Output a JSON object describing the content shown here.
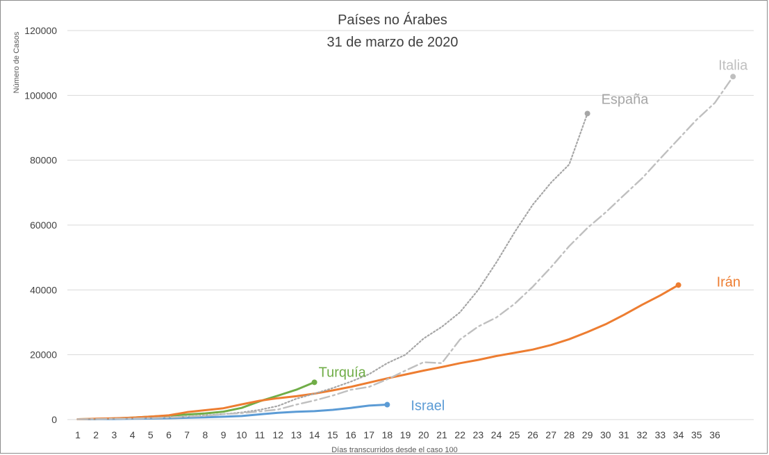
{
  "chart_data": {
    "type": "line",
    "title": "Países no Árabes",
    "subtitle": "31 de marzo de 2020",
    "xlabel": "Días transcurridos desde el caso 100",
    "ylabel": "Número de Casos",
    "ylim": [
      0,
      120000
    ],
    "y_ticks": [
      "0",
      "20000",
      "40000",
      "60000",
      "80000",
      "100000",
      "120000"
    ],
    "y_tick_values": [
      0,
      20000,
      40000,
      60000,
      80000,
      100000,
      120000
    ],
    "categories": [
      "1",
      "2",
      "3",
      "4",
      "5",
      "6",
      "7",
      "8",
      "9",
      "10",
      "11",
      "12",
      "13",
      "14",
      "15",
      "16",
      "17",
      "18",
      "19",
      "20",
      "21",
      "22",
      "23",
      "24",
      "25",
      "26",
      "27",
      "28",
      "29",
      "30",
      "31",
      "32",
      "33",
      "34",
      "35",
      "36"
    ],
    "grid": "horizontal",
    "series": [
      {
        "name": "Turquía",
        "color": "#70ad47",
        "style": "solid",
        "x": [
          1,
          2,
          3,
          4,
          5,
          6,
          7,
          8,
          9,
          10,
          11,
          12,
          13,
          14
        ],
        "values": [
          100,
          200,
          350,
          600,
          900,
          1250,
          1550,
          1900,
          2450,
          3600,
          5650,
          7400,
          9200,
          11500
        ]
      },
      {
        "name": "Israel",
        "color": "#5b9bd5",
        "style": "solid",
        "x": [
          1,
          2,
          3,
          4,
          5,
          6,
          7,
          8,
          9,
          10,
          11,
          12,
          13,
          14,
          15,
          16,
          17,
          18
        ],
        "values": [
          100,
          120,
          180,
          250,
          330,
          430,
          550,
          700,
          880,
          1100,
          1600,
          2100,
          2400,
          2600,
          3000,
          3600,
          4300,
          4600
        ]
      },
      {
        "name": "Irán",
        "color": "#ed7d31",
        "style": "solid",
        "x": [
          1,
          2,
          3,
          4,
          5,
          6,
          7,
          8,
          9,
          10,
          11,
          12,
          13,
          14,
          15,
          16,
          17,
          18,
          19,
          20,
          21,
          22,
          23,
          24,
          25,
          26,
          27,
          28,
          29,
          30,
          31,
          32,
          33,
          34
        ],
        "values": [
          100,
          250,
          400,
          600,
          900,
          1300,
          2300,
          2900,
          3500,
          4700,
          5800,
          6600,
          7200,
          8000,
          9000,
          10100,
          11400,
          12700,
          13900,
          15100,
          16200,
          17400,
          18400,
          19600,
          20600,
          21600,
          23000,
          24800,
          27000,
          29400,
          32300,
          35400,
          38300,
          41500
        ]
      },
      {
        "name": "España",
        "color": "#a6a6a6",
        "style": "dotted",
        "x": [
          1,
          2,
          3,
          4,
          5,
          6,
          7,
          8,
          9,
          10,
          11,
          12,
          13,
          14,
          15,
          16,
          17,
          18,
          19,
          20,
          21,
          22,
          23,
          24,
          25,
          26,
          27,
          28,
          29
        ],
        "values": [
          100,
          150,
          250,
          350,
          500,
          700,
          900,
          1300,
          1700,
          2200,
          3000,
          4200,
          6400,
          8000,
          9700,
          11700,
          14000,
          17400,
          20000,
          25000,
          28600,
          33100,
          40000,
          48500,
          57800,
          66300,
          73100,
          78700,
          94400
        ]
      },
      {
        "name": "Italia",
        "color": "#bfbfbf",
        "style": "dashdot",
        "x": [
          1,
          2,
          3,
          4,
          5,
          6,
          7,
          8,
          9,
          10,
          11,
          12,
          13,
          14,
          15,
          16,
          17,
          18,
          19,
          20,
          21,
          22,
          23,
          24,
          25,
          26,
          27,
          28,
          29,
          30,
          31,
          32,
          33,
          34,
          35,
          36,
          37
        ],
        "values": [
          100,
          150,
          230,
          320,
          450,
          650,
          890,
          1130,
          1700,
          2000,
          2500,
          3100,
          4600,
          5900,
          7400,
          9200,
          10100,
          12400,
          15100,
          17700,
          17400,
          24700,
          28700,
          31500,
          35700,
          41000,
          47000,
          53500,
          59100,
          63900,
          69200,
          74400,
          80500,
          86500,
          92500,
          97700,
          105800
        ]
      }
    ]
  }
}
